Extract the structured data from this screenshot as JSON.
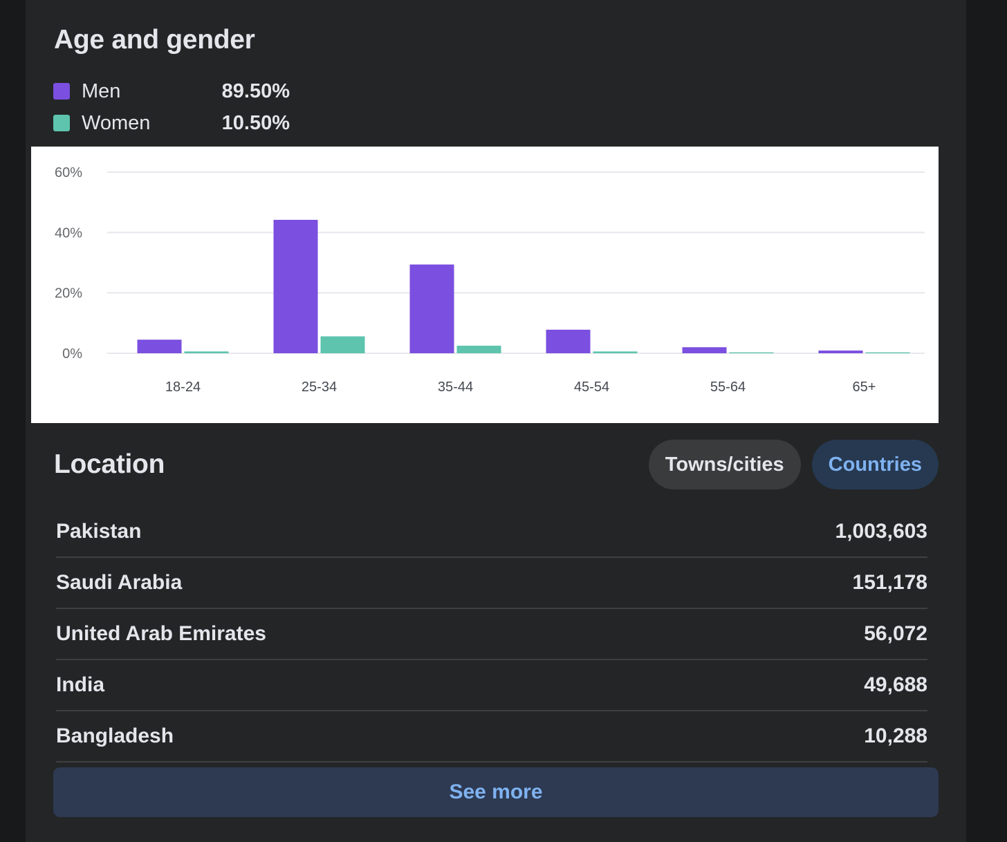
{
  "age_gender": {
    "title": "Age and gender",
    "legend": [
      {
        "label": "Men",
        "value": "89.50%",
        "color": "#7b4fe0"
      },
      {
        "label": "Women",
        "value": "10.50%",
        "color": "#5ec4ae"
      }
    ]
  },
  "chart_data": {
    "type": "bar",
    "categories": [
      "18-24",
      "25-34",
      "35-44",
      "45-54",
      "55-64",
      "65+"
    ],
    "series": [
      {
        "name": "Men",
        "color": "#7b4fe0",
        "values": [
          4.5,
          44.2,
          29.4,
          7.8,
          2.0,
          0.9
        ]
      },
      {
        "name": "Women",
        "color": "#5ec4ae",
        "values": [
          0.6,
          5.6,
          2.5,
          0.6,
          0.3,
          0.3
        ]
      }
    ],
    "y_ticks": [
      "0%",
      "20%",
      "40%",
      "60%"
    ],
    "ylim": [
      0,
      60
    ],
    "grid": true
  },
  "location": {
    "title": "Location",
    "tabs": [
      {
        "label": "Towns/cities",
        "active": false
      },
      {
        "label": "Countries",
        "active": true
      }
    ],
    "rows": [
      {
        "country": "Pakistan",
        "count": "1,003,603"
      },
      {
        "country": "Saudi Arabia",
        "count": "151,178"
      },
      {
        "country": "United Arab Emirates",
        "count": "56,072"
      },
      {
        "country": "India",
        "count": "49,688"
      },
      {
        "country": "Bangladesh",
        "count": "10,288"
      }
    ],
    "see_more_label": "See more"
  },
  "colors": {
    "background": "#18191a",
    "card": "#242526",
    "text": "#e4e6eb",
    "accent": "#7fb2f0",
    "active_tab_bg": "#263951",
    "inactive_tab_bg": "#3a3b3c"
  }
}
